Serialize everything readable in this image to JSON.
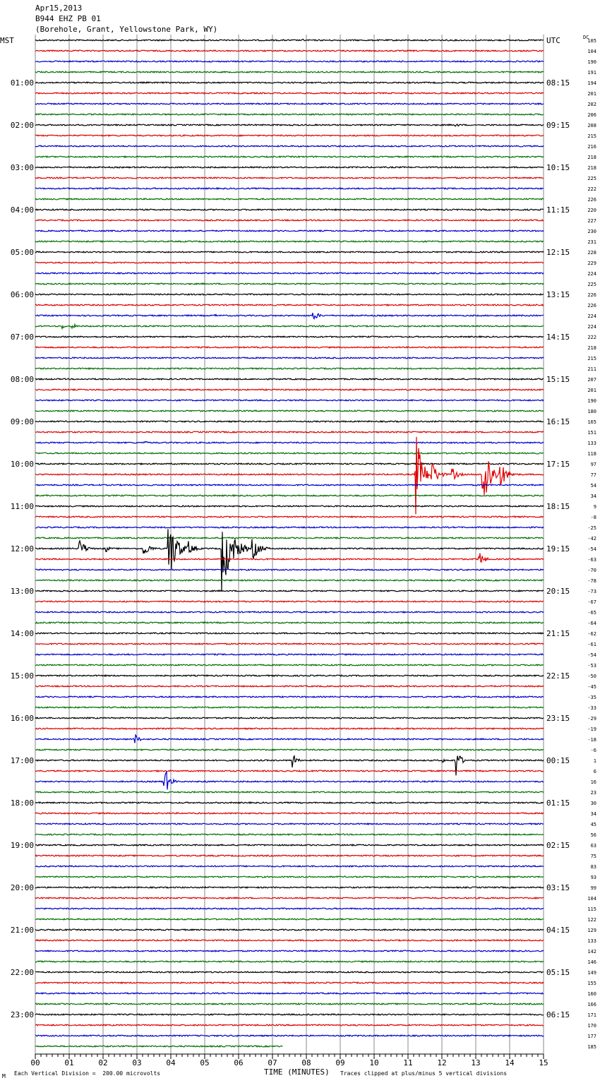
{
  "header": {
    "date": "Apr15,2013",
    "station": "B944 EHZ PB 01",
    "location": "(Borehole, Grant, Yellowstone Park, WY)"
  },
  "left_axis_label": "MST",
  "right_axis_label": "UTC",
  "dc_label": "DC",
  "footer": {
    "scale_note": "Each Vertical Division =  200.00 microvolts",
    "xlabel": "TIME (MINUTES)",
    "clip_note": "Traces clipped at plus/minus 5 vertical divisions",
    "corner_mark": "M"
  },
  "colors": {
    "cycle": [
      "#000000",
      "#e00000",
      "#0000d0",
      "#007000"
    ],
    "grid": "#888888"
  },
  "chart_data": {
    "type": "line",
    "title": "B944 EHZ PB 01",
    "xlabel": "TIME (MINUTES)",
    "xlim": [
      0,
      15
    ],
    "x_ticks": [
      "00",
      "01",
      "02",
      "03",
      "04",
      "05",
      "06",
      "07",
      "08",
      "09",
      "10",
      "11",
      "12",
      "13",
      "14",
      "15"
    ],
    "trace_interval_minutes": 15,
    "trace_count": 96,
    "last_trace_end_minute": 7.3,
    "mst_labels": [
      "01:00",
      "02:00",
      "03:00",
      "04:00",
      "05:00",
      "06:00",
      "07:00",
      "08:00",
      "09:00",
      "10:00",
      "11:00",
      "12:00",
      "13:00",
      "14:00",
      "15:00",
      "16:00",
      "17:00",
      "18:00",
      "19:00",
      "20:00",
      "21:00",
      "22:00",
      "23:00"
    ],
    "utc_labels": [
      "UTC",
      "08:15",
      "09:15",
      "10:15",
      "11:15",
      "12:15",
      "13:15",
      "14:15",
      "15:15",
      "16:15",
      "17:15",
      "18:15",
      "19:15",
      "20:15",
      "21:15",
      "22:15",
      "23:15",
      "00:15",
      "01:15",
      "02:15",
      "03:15",
      "04:15",
      "05:15",
      "06:15"
    ],
    "dc_offsets": [
      105,
      104,
      190,
      191,
      194,
      201,
      202,
      206,
      208,
      215,
      216,
      218,
      218,
      225,
      222,
      226,
      220,
      227,
      230,
      231,
      228,
      229,
      224,
      225,
      226,
      226,
      224,
      224,
      222,
      218,
      215,
      211,
      207,
      201,
      190,
      180,
      165,
      151,
      133,
      118,
      97,
      77,
      54,
      34,
      9,
      -8,
      -25,
      -42,
      -54,
      -63,
      -70,
      -78,
      -73,
      -67,
      -65,
      -64,
      -62,
      -61,
      -54,
      -53,
      -50,
      -45,
      -35,
      -33,
      -29,
      -19,
      -18,
      -6,
      1,
      6,
      16,
      23,
      30,
      34,
      45,
      56,
      63,
      75,
      83,
      93,
      99,
      104,
      115,
      122,
      129,
      133,
      142,
      146,
      149,
      155,
      160,
      166,
      171,
      170,
      177,
      185
    ],
    "events": [
      {
        "trace": 0,
        "minute": 7.9,
        "amp": 2,
        "dur": 0.4
      },
      {
        "trace": 8,
        "minute": 11.5,
        "amp": 2,
        "dur": 0.3
      },
      {
        "trace": 8,
        "minute": 12.4,
        "amp": 3,
        "dur": 0.4
      },
      {
        "trace": 26,
        "minute": 5.3,
        "amp": 2,
        "dur": 0.4
      },
      {
        "trace": 26,
        "minute": 8.2,
        "amp": 7,
        "dur": 0.5
      },
      {
        "trace": 27,
        "minute": 0.8,
        "amp": 4,
        "dur": 0.3
      },
      {
        "trace": 27,
        "minute": 1.1,
        "amp": 5,
        "dur": 0.3
      },
      {
        "trace": 38,
        "minute": 3.2,
        "amp": 4,
        "dur": 0.3
      },
      {
        "trace": 41,
        "minute": 11.2,
        "amp": 75,
        "dur": 0.5
      },
      {
        "trace": 41,
        "minute": 11.7,
        "amp": 20,
        "dur": 0.5
      },
      {
        "trace": 41,
        "minute": 12.3,
        "amp": 10,
        "dur": 0.5
      },
      {
        "trace": 41,
        "minute": 13.2,
        "amp": 75,
        "dur": 0.5
      },
      {
        "trace": 41,
        "minute": 13.7,
        "amp": 20,
        "dur": 0.6
      },
      {
        "trace": 43,
        "minute": 0.3,
        "amp": 2,
        "dur": 0.3
      },
      {
        "trace": 48,
        "minute": 1.3,
        "amp": 14,
        "dur": 0.5
      },
      {
        "trace": 48,
        "minute": 2.1,
        "amp": 5,
        "dur": 0.3
      },
      {
        "trace": 48,
        "minute": 3.2,
        "amp": 12,
        "dur": 0.5
      },
      {
        "trace": 48,
        "minute": 3.9,
        "amp": 60,
        "dur": 0.6
      },
      {
        "trace": 48,
        "minute": 4.5,
        "amp": 12,
        "dur": 0.5
      },
      {
        "trace": 48,
        "minute": 5.5,
        "amp": 62,
        "dur": 0.8
      },
      {
        "trace": 48,
        "minute": 6.4,
        "amp": 18,
        "dur": 0.6
      },
      {
        "trace": 49,
        "minute": 13.1,
        "amp": 12,
        "dur": 0.4
      },
      {
        "trace": 66,
        "minute": 2.9,
        "amp": 10,
        "dur": 0.4
      },
      {
        "trace": 68,
        "minute": 7.6,
        "amp": 12,
        "dur": 0.3
      },
      {
        "trace": 68,
        "minute": 12.0,
        "amp": 5,
        "dur": 0.2
      },
      {
        "trace": 68,
        "minute": 12.4,
        "amp": 30,
        "dur": 0.3
      },
      {
        "trace": 70,
        "minute": 3.8,
        "amp": 24,
        "dur": 0.4
      },
      {
        "trace": 70,
        "minute": 5.0,
        "amp": 3,
        "dur": 0.2
      }
    ]
  }
}
